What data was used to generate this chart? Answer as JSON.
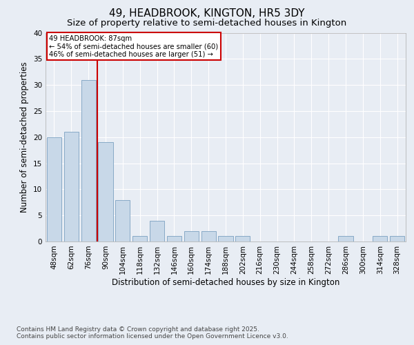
{
  "title": "49, HEADBROOK, KINGTON, HR5 3DY",
  "subtitle": "Size of property relative to semi-detached houses in Kington",
  "xlabel": "Distribution of semi-detached houses by size in Kington",
  "ylabel": "Number of semi-detached properties",
  "footnote1": "Contains HM Land Registry data © Crown copyright and database right 2025.",
  "footnote2": "Contains public sector information licensed under the Open Government Licence v3.0.",
  "categories": [
    "48sqm",
    "62sqm",
    "76sqm",
    "90sqm",
    "104sqm",
    "118sqm",
    "132sqm",
    "146sqm",
    "160sqm",
    "174sqm",
    "188sqm",
    "202sqm",
    "216sqm",
    "230sqm",
    "244sqm",
    "258sqm",
    "272sqm",
    "286sqm",
    "300sqm",
    "314sqm",
    "328sqm"
  ],
  "values": [
    20,
    21,
    31,
    19,
    8,
    1,
    4,
    1,
    2,
    2,
    1,
    1,
    0,
    0,
    0,
    0,
    0,
    1,
    0,
    1,
    1
  ],
  "bar_color": "#c8d8e8",
  "bar_edge_color": "#7aA0c0",
  "red_line_x": 3.0,
  "annotation_title": "49 HEADBROOK: 87sqm",
  "annotation_line1": "← 54% of semi-detached houses are smaller (60)",
  "annotation_line2": "46% of semi-detached houses are larger (51) →",
  "annotation_box_color": "#ffffff",
  "annotation_box_edge": "#cc0000",
  "red_line_color": "#cc0000",
  "ylim": [
    0,
    40
  ],
  "yticks": [
    0,
    5,
    10,
    15,
    20,
    25,
    30,
    35,
    40
  ],
  "background_color": "#e8edf4",
  "plot_bg_color": "#e8edf4",
  "grid_color": "#ffffff",
  "title_fontsize": 11,
  "subtitle_fontsize": 9.5,
  "axis_label_fontsize": 8.5,
  "tick_fontsize": 7.5,
  "footnote_fontsize": 6.5
}
